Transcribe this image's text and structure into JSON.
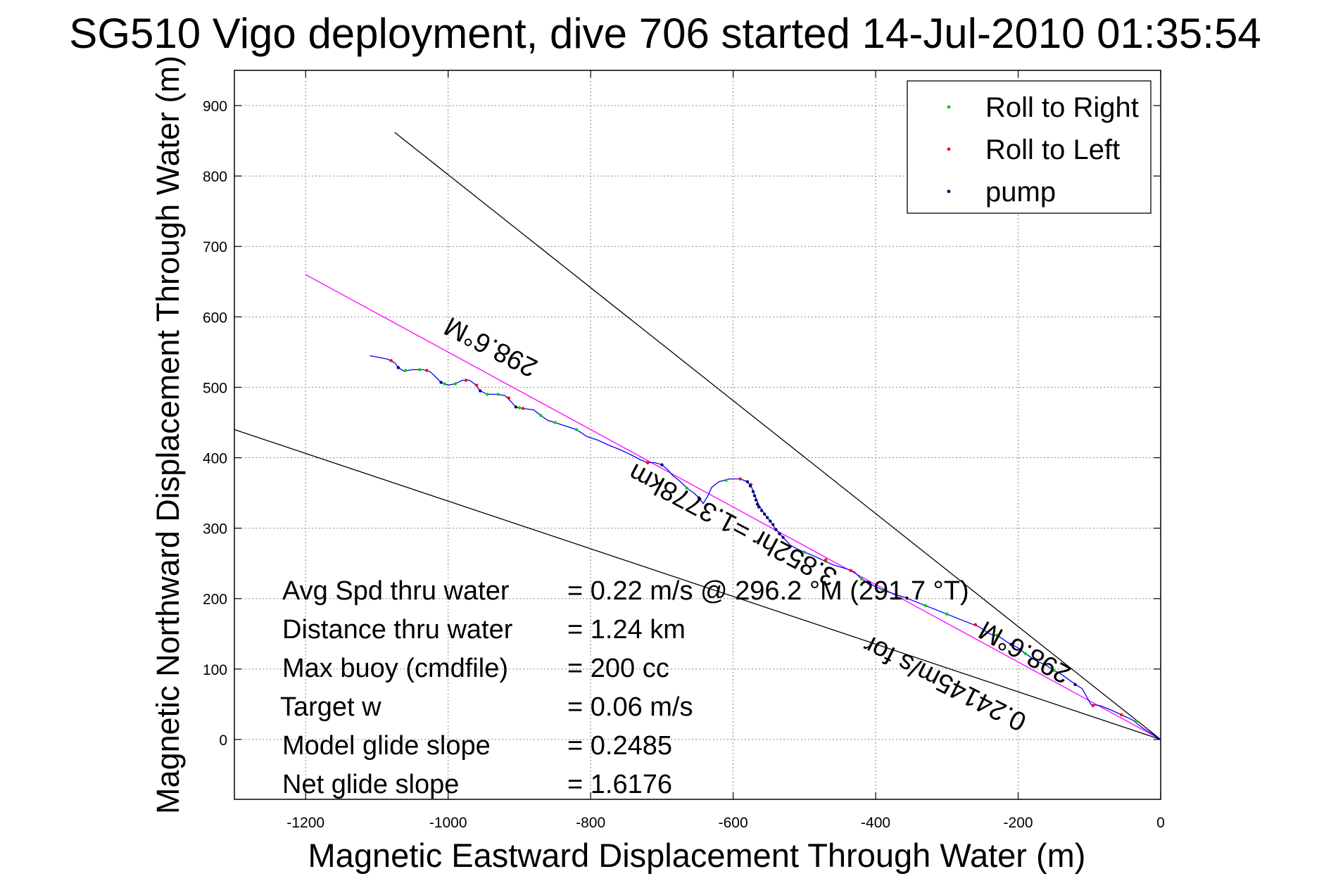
{
  "chart_data": {
    "type": "line",
    "title": "SG510 Vigo deployment, dive 706 started 14-Jul-2010 01:35:54",
    "xlabel": "Magnetic Eastward Displacement Through Water (m)",
    "ylabel": "Magnetic Northward Displacement Through Water (m)",
    "xlim": [
      -1300,
      0
    ],
    "ylim": [
      -85,
      950
    ],
    "xticks": [
      -1200,
      -1000,
      -800,
      -600,
      -400,
      -200,
      0
    ],
    "yticks": [
      0,
      100,
      200,
      300,
      400,
      500,
      600,
      700,
      800,
      900
    ],
    "grid": true,
    "legend": {
      "placement": "top-right",
      "entries": [
        {
          "label": "Roll to Right",
          "color": "#00cc00"
        },
        {
          "label": "Roll to Left",
          "color": "#ff0000"
        },
        {
          "label": "pump",
          "color": "#000080"
        }
      ]
    },
    "colors": {
      "track": "#0000ff",
      "heading_line": "#ff00ff",
      "cone": "#000000"
    },
    "reference_lines": [
      {
        "name": "heading",
        "points": [
          [
            -1200,
            660
          ],
          [
            0,
            0
          ]
        ],
        "color": "#ff00ff"
      },
      {
        "name": "cone-upper",
        "points": [
          [
            -1075,
            862
          ],
          [
            0,
            0
          ]
        ],
        "color": "#000000"
      },
      {
        "name": "cone-lower",
        "points": [
          [
            -1300,
            440
          ],
          [
            0,
            0
          ]
        ],
        "color": "#000000"
      }
    ],
    "series": [
      {
        "type": "line",
        "color": "#0000ff",
        "points": [
          [
            -1110,
            545
          ],
          [
            -1095,
            542
          ],
          [
            -1085,
            540
          ],
          [
            -1075,
            535
          ],
          [
            -1070,
            528
          ],
          [
            -1062,
            523
          ],
          [
            -1050,
            525
          ],
          [
            -1035,
            525
          ],
          [
            -1025,
            522
          ],
          [
            -1018,
            515
          ],
          [
            -1010,
            507
          ],
          [
            -1000,
            503
          ],
          [
            -990,
            505
          ],
          [
            -980,
            510
          ],
          [
            -970,
            510
          ],
          [
            -962,
            504
          ],
          [
            -955,
            495
          ],
          [
            -945,
            490
          ],
          [
            -930,
            490
          ],
          [
            -920,
            488
          ],
          [
            -912,
            480
          ],
          [
            -905,
            472
          ],
          [
            -895,
            470
          ],
          [
            -880,
            468
          ],
          [
            -870,
            460
          ],
          [
            -860,
            453
          ],
          [
            -850,
            450
          ],
          [
            -835,
            445
          ],
          [
            -820,
            440
          ],
          [
            -805,
            430
          ],
          [
            -790,
            425
          ],
          [
            -775,
            418
          ],
          [
            -760,
            412
          ],
          [
            -745,
            405
          ],
          [
            -730,
            397
          ],
          [
            -720,
            393
          ],
          [
            -710,
            393
          ],
          [
            -700,
            390
          ],
          [
            -692,
            383
          ],
          [
            -685,
            375
          ],
          [
            -675,
            367
          ],
          [
            -665,
            357
          ],
          [
            -655,
            350
          ],
          [
            -648,
            343
          ],
          [
            -642,
            335
          ],
          [
            -636,
            345
          ],
          [
            -630,
            358
          ],
          [
            -620,
            366
          ],
          [
            -605,
            370
          ],
          [
            -590,
            370
          ],
          [
            -580,
            366
          ],
          [
            -574,
            358
          ],
          [
            -569,
            345
          ],
          [
            -564,
            333
          ],
          [
            -556,
            320
          ],
          [
            -548,
            310
          ],
          [
            -540,
            298
          ],
          [
            -530,
            287
          ],
          [
            -520,
            276
          ],
          [
            -505,
            268
          ],
          [
            -490,
            262
          ],
          [
            -475,
            255
          ],
          [
            -460,
            248
          ],
          [
            -440,
            242
          ],
          [
            -430,
            238
          ],
          [
            -420,
            228
          ],
          [
            -410,
            222
          ],
          [
            -400,
            217
          ],
          [
            -390,
            212
          ],
          [
            -375,
            207
          ],
          [
            -360,
            202
          ],
          [
            -345,
            196
          ],
          [
            -330,
            190
          ],
          [
            -315,
            184
          ],
          [
            -300,
            178
          ],
          [
            -285,
            172
          ],
          [
            -270,
            166
          ],
          [
            -255,
            160
          ],
          [
            -240,
            150
          ],
          [
            -225,
            145
          ],
          [
            -215,
            138
          ],
          [
            -200,
            130
          ],
          [
            -190,
            122
          ],
          [
            -175,
            112
          ],
          [
            -160,
            105
          ],
          [
            -150,
            98
          ],
          [
            -140,
            93
          ],
          [
            -125,
            82
          ],
          [
            -110,
            72
          ],
          [
            -98,
            50
          ],
          [
            -85,
            48
          ],
          [
            -70,
            42
          ],
          [
            -55,
            35
          ],
          [
            -40,
            28
          ],
          [
            -25,
            16
          ],
          [
            -12,
            8
          ],
          [
            0,
            0
          ]
        ]
      },
      {
        "type": "scatter",
        "name": "Roll to Right",
        "color": "#00cc00",
        "points": [
          [
            -1060,
            524
          ],
          [
            -1040,
            525
          ],
          [
            -1005,
            505
          ],
          [
            -990,
            505
          ],
          [
            -945,
            490
          ],
          [
            -930,
            490
          ],
          [
            -900,
            471
          ],
          [
            -870,
            460
          ],
          [
            -850,
            450
          ],
          [
            -820,
            440
          ],
          [
            -720,
            393
          ],
          [
            -665,
            357
          ],
          [
            -610,
            368
          ],
          [
            -500,
            266
          ],
          [
            -470,
            253
          ],
          [
            -420,
            228
          ],
          [
            -390,
            212
          ],
          [
            -330,
            190
          ],
          [
            -300,
            178
          ],
          [
            -230,
            148
          ],
          [
            -190,
            122
          ],
          [
            -150,
            98
          ],
          [
            -35,
            26
          ]
        ]
      },
      {
        "type": "scatter",
        "name": "Roll to Left",
        "color": "#ff0000",
        "points": [
          [
            -1080,
            538
          ],
          [
            -1030,
            524
          ],
          [
            -975,
            510
          ],
          [
            -960,
            503
          ],
          [
            -915,
            485
          ],
          [
            -895,
            470
          ],
          [
            -720,
            393
          ],
          [
            -590,
            370
          ],
          [
            -575,
            362
          ],
          [
            -470,
            255
          ],
          [
            -435,
            240
          ],
          [
            -260,
            163
          ],
          [
            -95,
            48
          ],
          [
            -55,
            35
          ]
        ]
      },
      {
        "type": "scatter",
        "name": "pump",
        "color": "#000080",
        "points": [
          [
            -1070,
            528
          ],
          [
            -1010,
            507
          ],
          [
            -955,
            495
          ],
          [
            -905,
            472
          ],
          [
            -700,
            390
          ],
          [
            -648,
            343
          ],
          [
            -580,
            366
          ],
          [
            -576,
            360
          ],
          [
            -572,
            352
          ],
          [
            -570,
            346
          ],
          [
            -568,
            340
          ],
          [
            -566,
            334
          ],
          [
            -564,
            330
          ],
          [
            -560,
            325
          ],
          [
            -556,
            320
          ],
          [
            -552,
            315
          ],
          [
            -548,
            310
          ],
          [
            -544,
            305
          ],
          [
            -540,
            298
          ],
          [
            -535,
            292
          ],
          [
            -530,
            287
          ],
          [
            -410,
            222
          ],
          [
            -210,
            135
          ],
          [
            -120,
            78
          ]
        ]
      }
    ],
    "annotations": {
      "heading_label": "298.6°M",
      "cone_label": "298.6°M",
      "distance_label": "3.852hr =1.3778km",
      "speed_label": "0.24145m/s for"
    },
    "stats": [
      {
        "label": "Avg Spd thru water",
        "value": "=  0.22 m/s @ 296.2  °M (291.7 °T)"
      },
      {
        "label": "Distance thru water",
        "value": "=  1.24 km"
      },
      {
        "label": "Max buoy (cmdfile)",
        "value": "= 200 cc"
      },
      {
        "label": "Target w",
        "value": "= 0.06 m/s"
      },
      {
        "label": "Model glide slope",
        "value": "= 0.2485"
      },
      {
        "label": "Net glide slope",
        "value": "= 1.6176"
      }
    ]
  }
}
